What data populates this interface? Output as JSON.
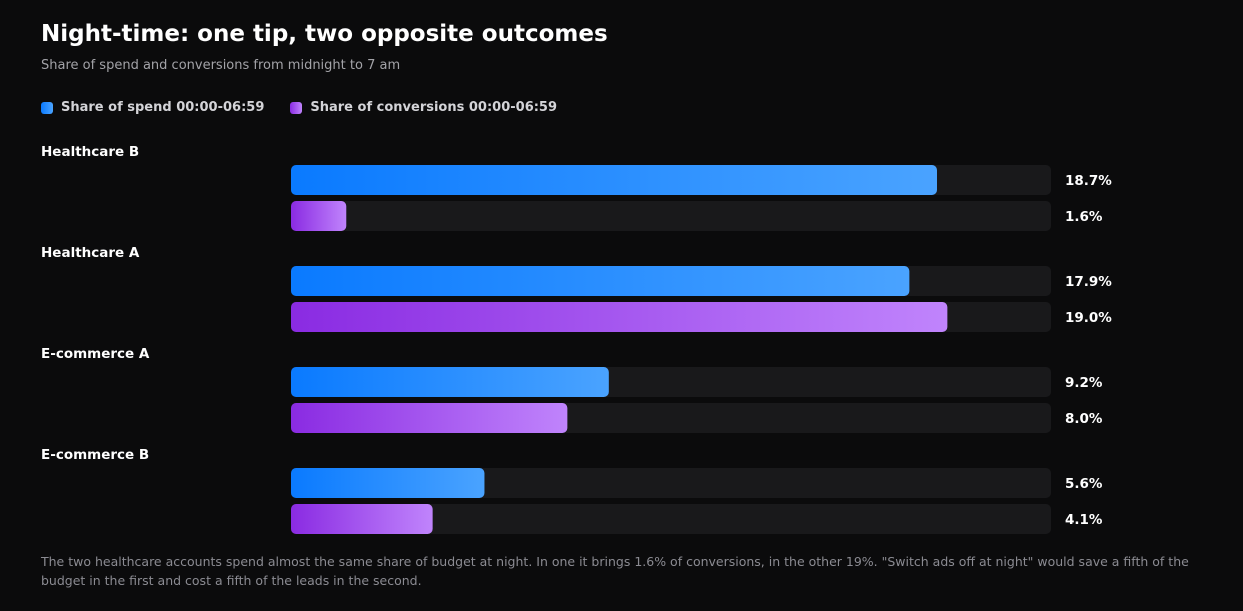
{
  "page": {
    "title": "Night-time: one tip, two opposite outcomes",
    "subtitle": "Share of spend and conversions from midnight to 7 am",
    "footnote": "The two healthcare accounts spend almost the same share of budget at night. In one it brings 1.6% of conversions, in the other 19%. \"Switch ads off at night\" would save a fifth of the budget in the first and cost a fifth of the leads in the second."
  },
  "legend": {
    "spend": "Share of spend 00:00-06:59",
    "conversions": "Share of conversions 00:00-06:59"
  },
  "colors": {
    "background": "#0b0b0c",
    "track": "#19191b",
    "spend_start": "#0a7aff",
    "spend_end": "#4aa3ff",
    "conversions_start": "#8a2be2",
    "conversions_end": "#c084fc"
  },
  "chart_data": {
    "type": "bar",
    "orientation": "horizontal",
    "xlim": [
      0,
      22
    ],
    "categories": [
      "Healthcare B",
      "Healthcare A",
      "E-commerce A",
      "E-commerce B"
    ],
    "series": [
      {
        "key": "spend",
        "name": "Share of spend 00:00-06:59",
        "values": [
          18.7,
          17.9,
          9.2,
          5.6
        ],
        "labels": [
          "18.7%",
          "17.9%",
          "9.2%",
          "5.6%"
        ]
      },
      {
        "key": "conversions",
        "name": "Share of conversions 00:00-06:59",
        "values": [
          1.6,
          19.0,
          8.0,
          4.1
        ],
        "labels": [
          "1.6%",
          "19.0%",
          "8.0%",
          "4.1%"
        ]
      }
    ]
  }
}
